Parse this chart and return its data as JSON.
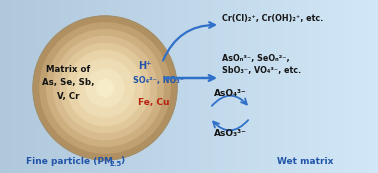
{
  "matrix_text_lines": [
    "Matrix of",
    "As, Se, Sb,",
    "V, Cr"
  ],
  "label_fine_particle": "Fine particle (PM",
  "label_fine_particle_sub": "2.5",
  "label_wet_matrix": "Wet matrix",
  "hplus_text": "H⁺",
  "sulfate_text": "SO₄²⁻, NO₃⁻",
  "fe_cu_text": "Fe, Cu",
  "arrow1_label": "Cr(Cl)₂⁺, Cr(OH)₂⁺, etc.",
  "arrow2_label1": "AsOₙ³⁻, SeOₙ²⁻,",
  "arrow2_label2": "SbO₃⁻, VO₄³⁻, etc.",
  "aso4_label": "AsO₄³⁻",
  "aso3_label": "AsO₃³⁻",
  "blue_arrow_color": "#3070c8",
  "red_text_color": "#b82010",
  "dark_text_color": "#151515",
  "blue_label_color": "#2255aa",
  "circle_gradient": [
    [
      0.42,
      "#b09060"
    ],
    [
      0.38,
      "#c0a070"
    ],
    [
      0.34,
      "#ceb080"
    ],
    [
      0.3,
      "#d8bc90"
    ],
    [
      0.26,
      "#e0c89a"
    ],
    [
      0.22,
      "#e8d4a8"
    ],
    [
      0.17,
      "#eedcb4"
    ],
    [
      0.11,
      "#f2e4be"
    ],
    [
      0.05,
      "#f6ecc8"
    ]
  ],
  "bg_gradient_colors": [
    "#b0c8dc",
    "#ccdaec",
    "#ddeaf8"
  ]
}
